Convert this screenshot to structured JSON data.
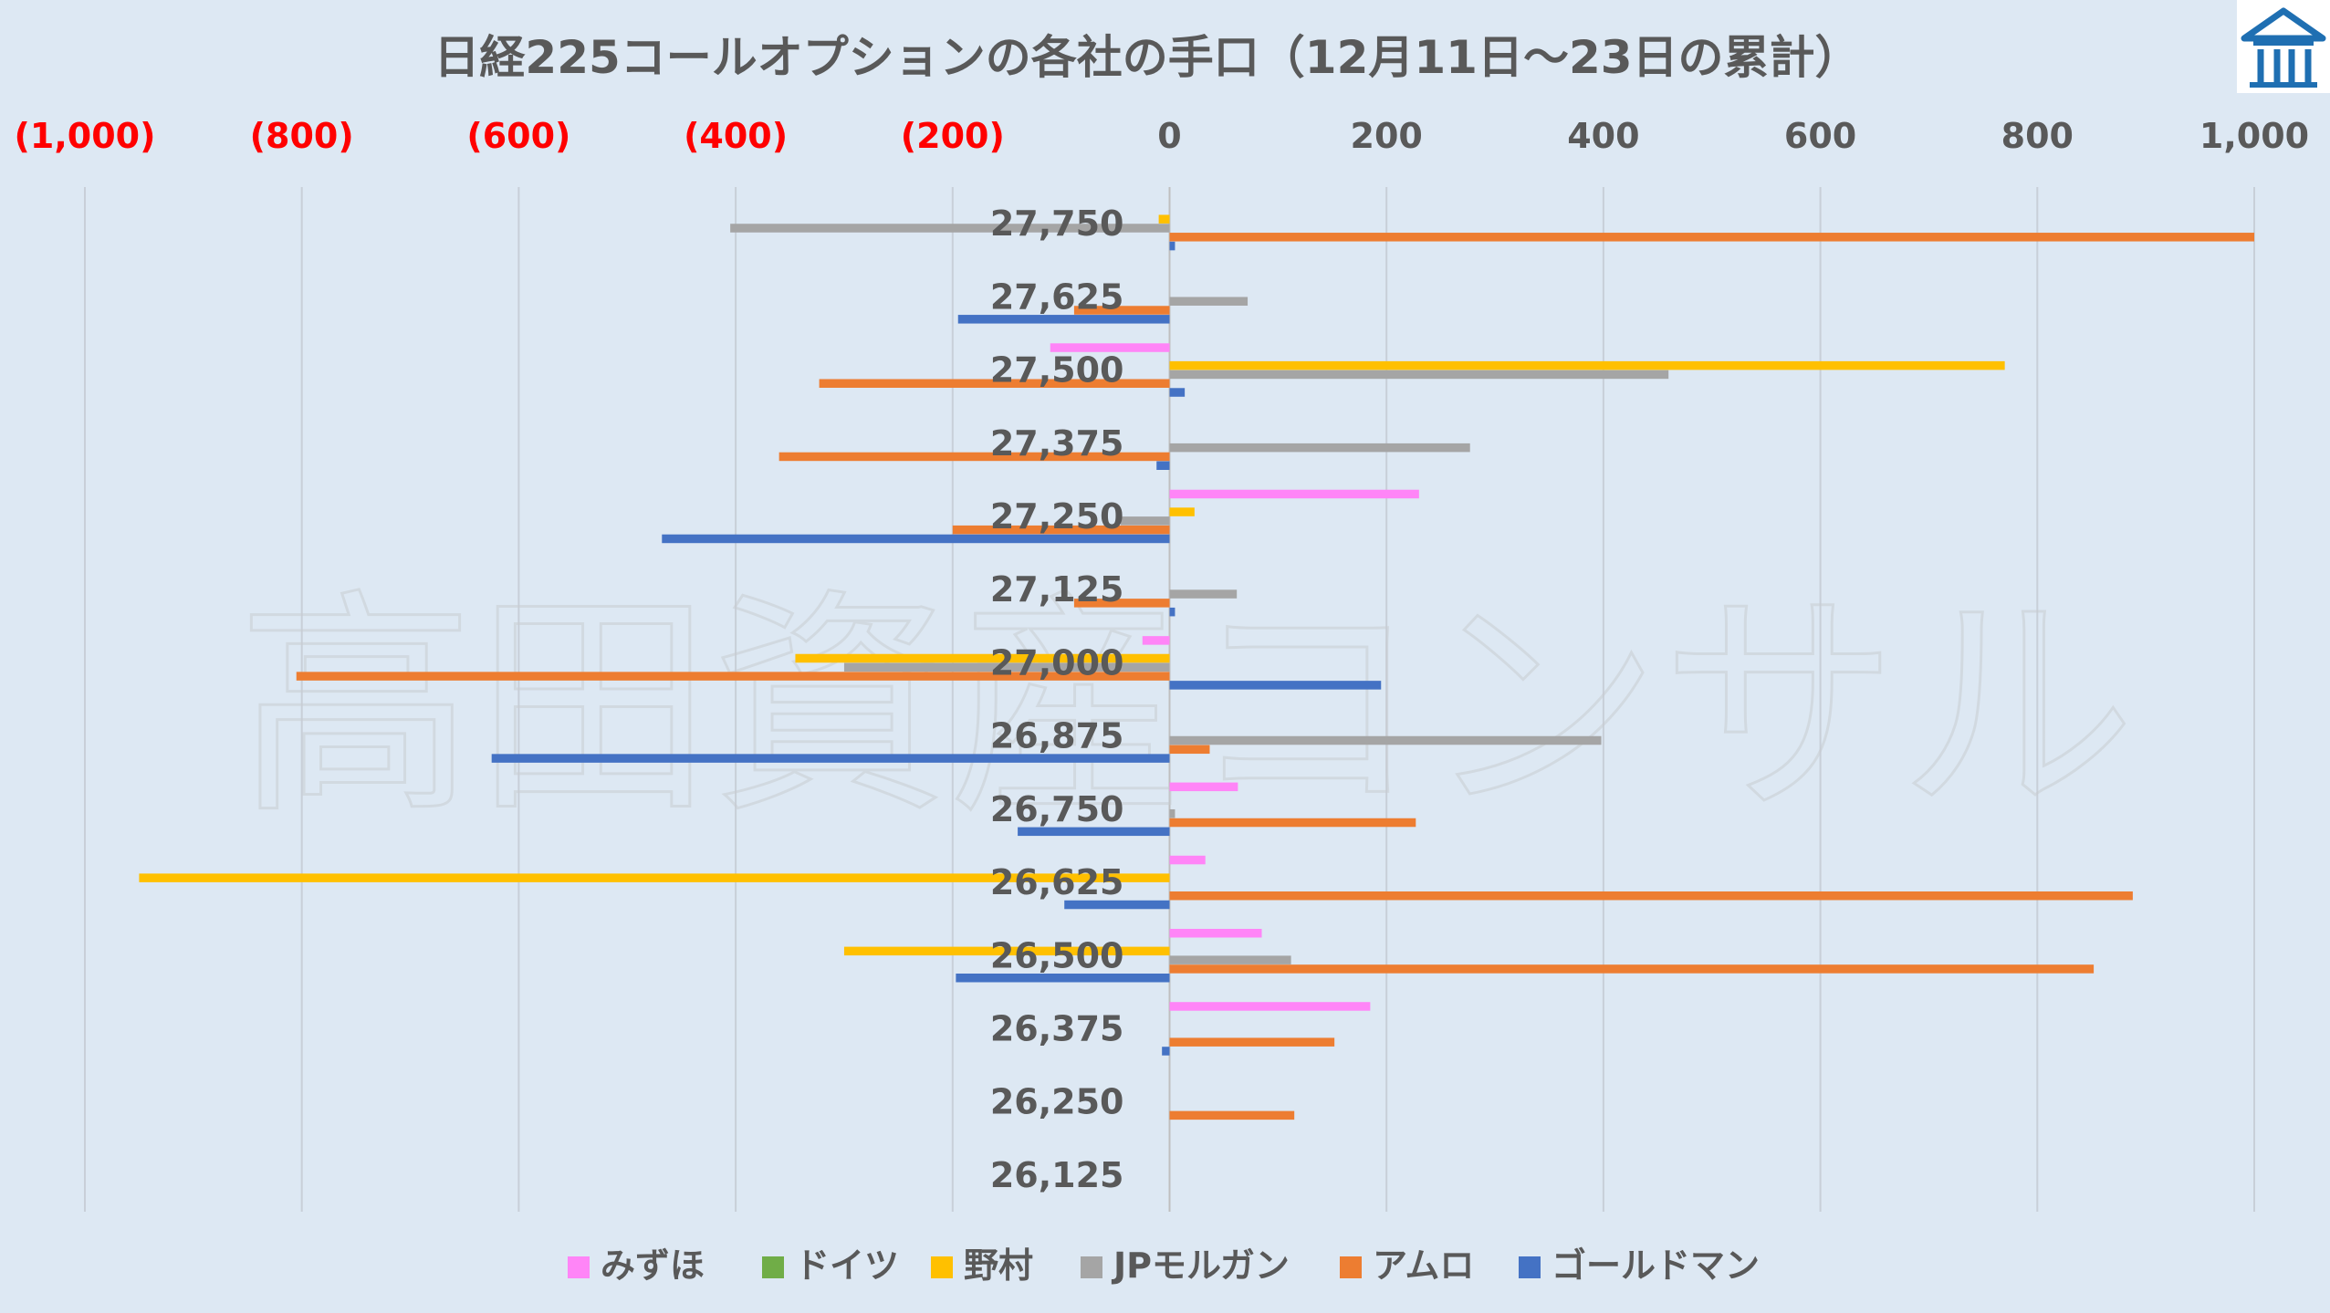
{
  "chart_data": {
    "type": "bar",
    "orientation": "horizontal",
    "title": "日経225コールオプションの各社の手口（12月11日〜23日の累計）",
    "watermark": "高田資産コンサル",
    "logo_icon": "house-logo-icon",
    "xlim": [
      -1000,
      1000
    ],
    "x_ticks": [
      -1000,
      -800,
      -600,
      -400,
      -200,
      0,
      200,
      400,
      600,
      800,
      1000
    ],
    "x_tick_labels": [
      "(1,000)",
      "(800)",
      "(600)",
      "(400)",
      "(200)",
      "0",
      "200",
      "400",
      "600",
      "800",
      "1,000"
    ],
    "grid": true,
    "legend_position": "bottom",
    "categories": [
      "27,750",
      "27,625",
      "27,500",
      "27,375",
      "27,250",
      "27,125",
      "27,000",
      "26,875",
      "26,750",
      "26,625",
      "26,500",
      "26,375",
      "26,250",
      "26,125"
    ],
    "series": [
      {
        "name": "みずほ",
        "color": "#ff85f7",
        "values": [
          0,
          0,
          -110,
          0,
          230,
          0,
          -25,
          0,
          63,
          33,
          85,
          185,
          0,
          0
        ]
      },
      {
        "name": "ドイツ",
        "color": "#70ad47",
        "values": [
          0,
          0,
          0,
          0,
          0,
          0,
          0,
          0,
          0,
          0,
          0,
          0,
          0,
          0
        ]
      },
      {
        "name": "野村",
        "color": "#ffc000",
        "values": [
          -10,
          0,
          770,
          0,
          23,
          0,
          -345,
          0,
          0,
          -950,
          -300,
          0,
          0,
          0
        ]
      },
      {
        "name": "JPモルガン",
        "color": "#a5a5a5",
        "values": [
          -405,
          72,
          460,
          277,
          -45,
          62,
          -300,
          398,
          5,
          0,
          112,
          0,
          0,
          0
        ]
      },
      {
        "name": "アムロ",
        "color": "#ed7d31",
        "values": [
          1000,
          -88,
          -323,
          -360,
          -200,
          -88,
          -805,
          37,
          227,
          888,
          852,
          152,
          115,
          0
        ]
      },
      {
        "name": "ゴールドマン",
        "color": "#4472c4",
        "values": [
          5,
          -195,
          14,
          -12,
          -468,
          5,
          195,
          -625,
          -140,
          -97,
          -197,
          -7,
          0,
          0
        ]
      }
    ]
  }
}
